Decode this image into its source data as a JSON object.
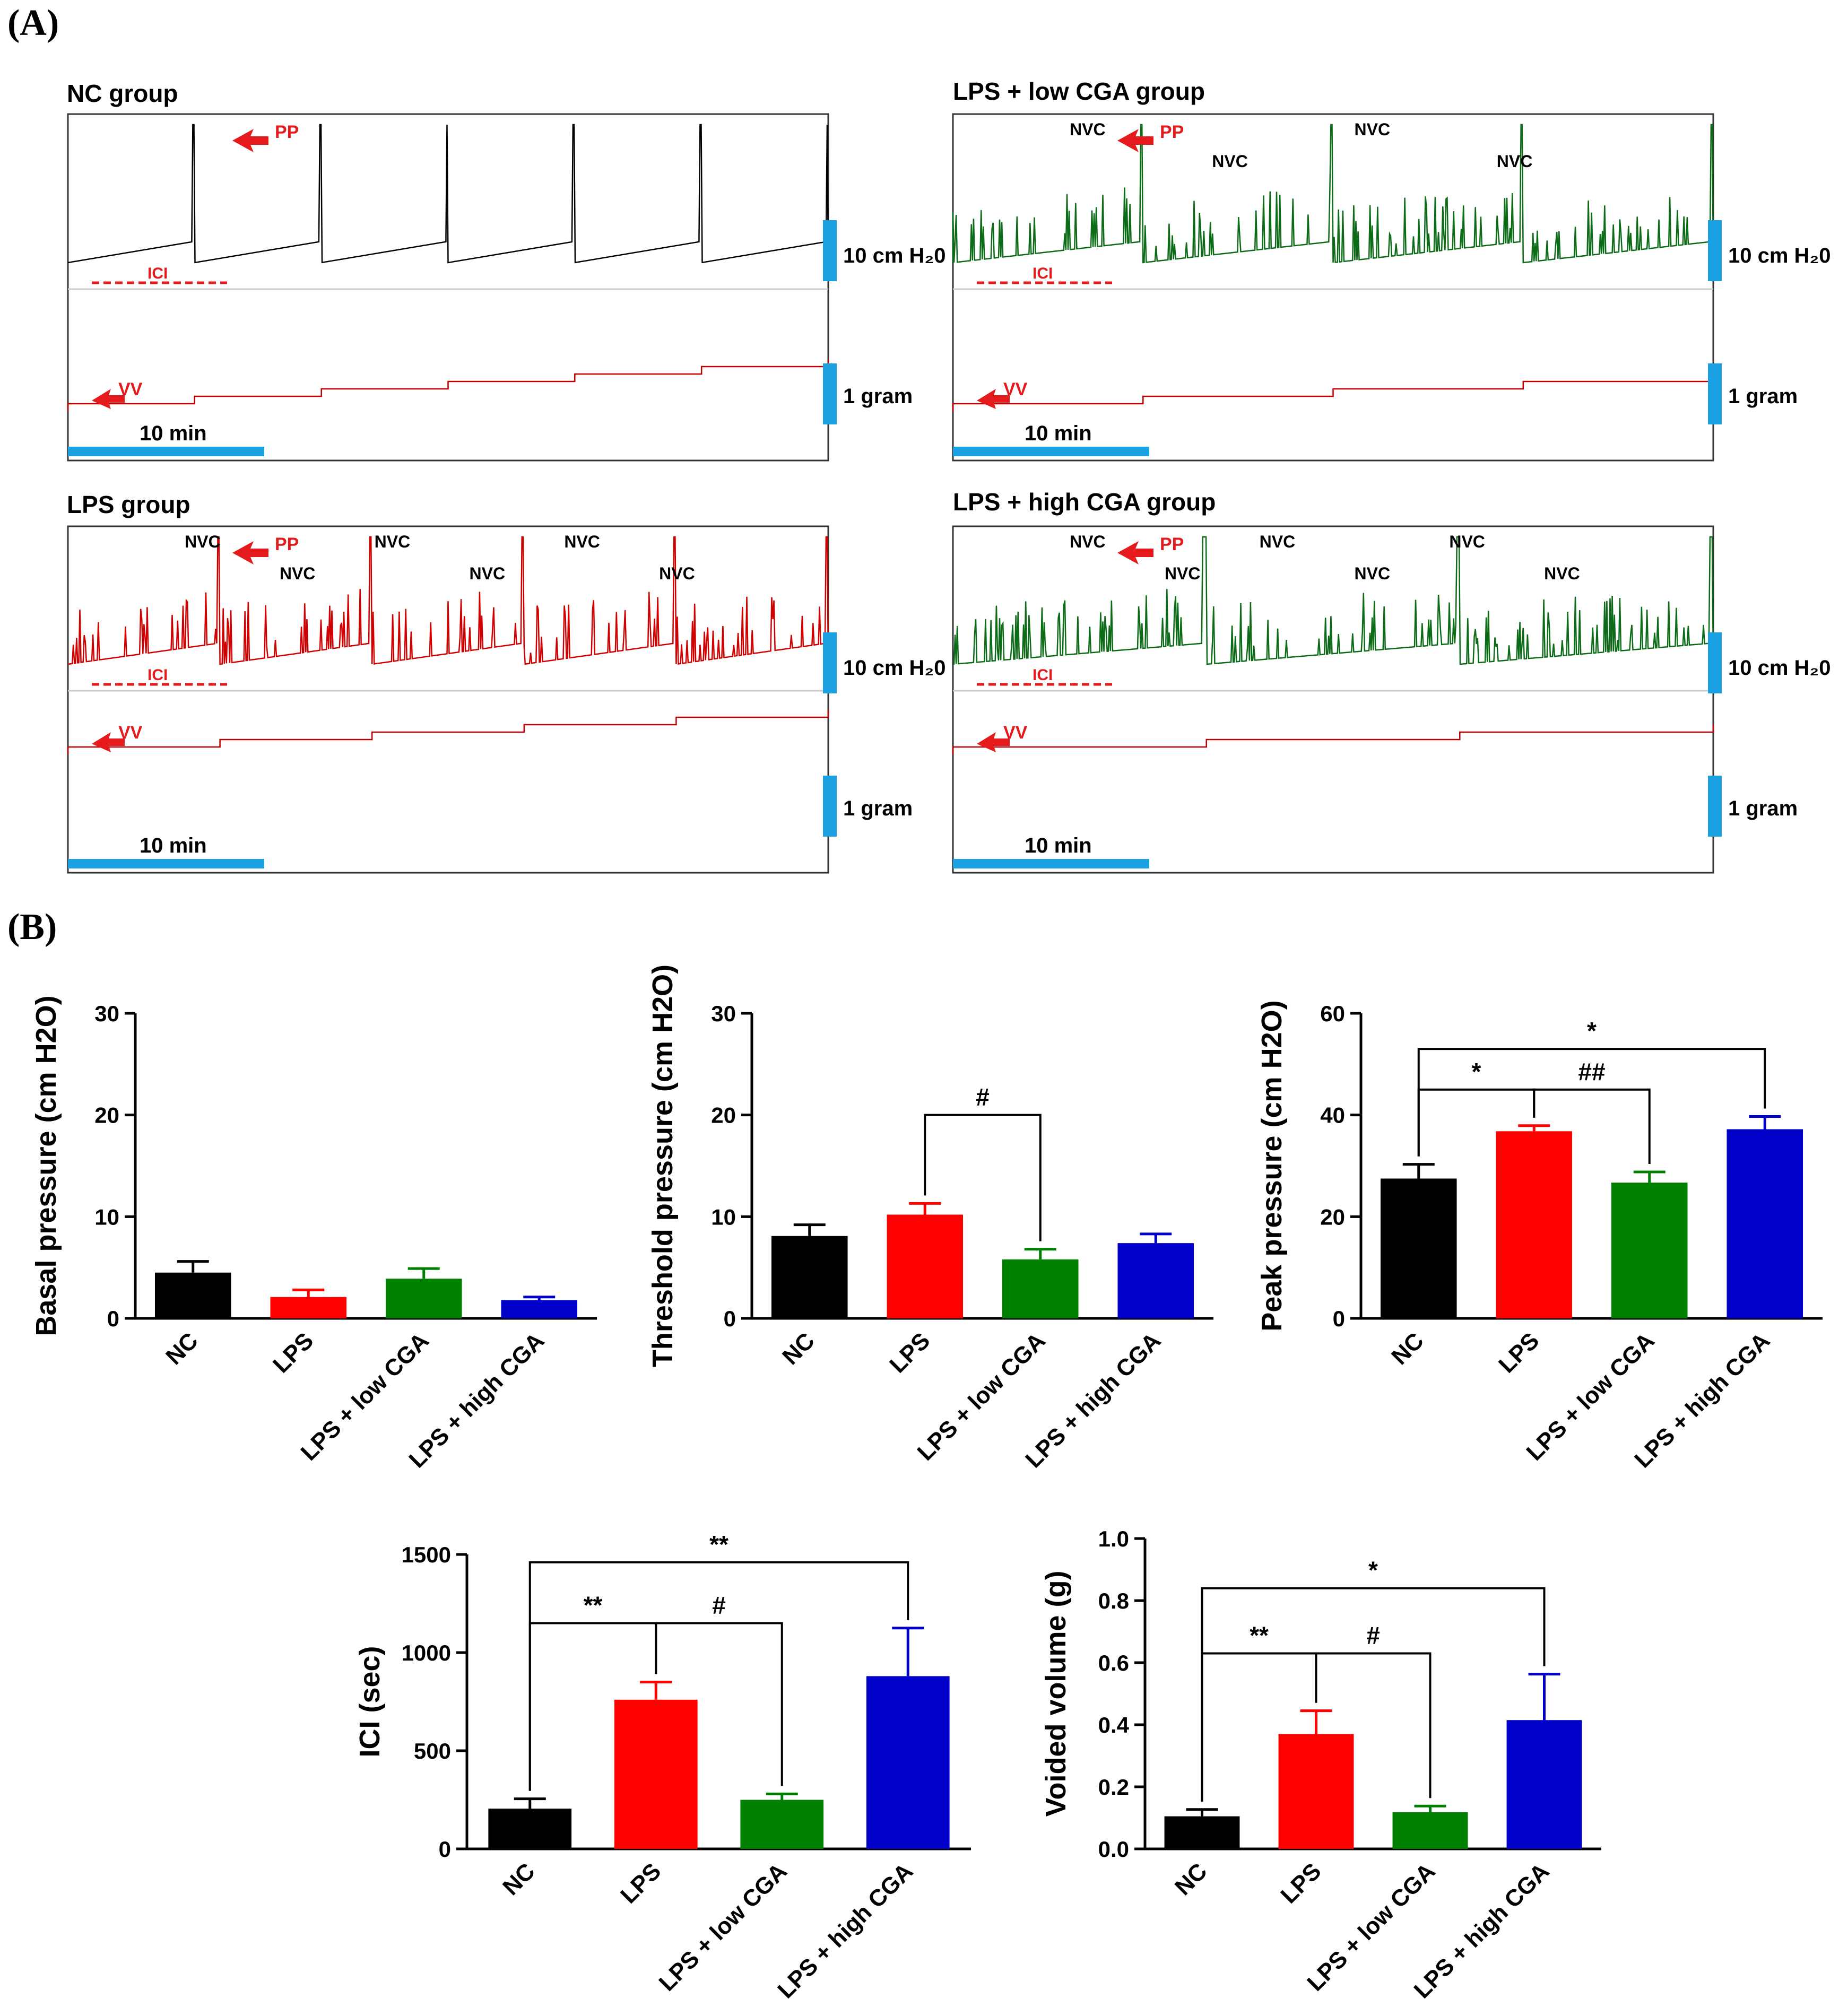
{
  "panels": {
    "a": {
      "label": "(A)"
    },
    "b": {
      "label": "(B)"
    }
  },
  "colors": {
    "nc": "#000000",
    "lps": "#ff0000",
    "low": "#008000",
    "high": "#0000c8",
    "annot": "#e41a1c",
    "scale": "#1ba1e2"
  },
  "traces": {
    "scale_pressure": "10 cm H₂0",
    "scale_weight": "1 gram",
    "scale_time": "10 min",
    "items": [
      {
        "title": "NC group",
        "pp": "PP",
        "ici": "ICI",
        "vv": "VV",
        "nvc": []
      },
      {
        "title": "LPS + low CGA group",
        "pp": "PP",
        "ici": "ICI",
        "vv": "VV",
        "nvc": [
          "NVC",
          "NVC",
          "NVC",
          "NVC"
        ]
      },
      {
        "title": "LPS group",
        "pp": "PP",
        "ici": "ICI",
        "vv": "VV",
        "nvc": [
          "NVC",
          "NVC",
          "NVC",
          "NVC",
          "NVC",
          "NVC"
        ]
      },
      {
        "title": "LPS + high CGA group",
        "pp": "PP",
        "ici": "ICI",
        "vv": "VV",
        "nvc": [
          "NVC",
          "NVC",
          "NVC",
          "NVC",
          "NVC",
          "NVC"
        ]
      }
    ]
  },
  "chart_data": [
    {
      "type": "bar",
      "ylabel": "Basal pressure (cm H2O)",
      "ylim": [
        0,
        30
      ],
      "yticks": [
        0,
        10,
        20,
        30
      ],
      "categories": [
        "NC",
        "LPS",
        "LPS + low CGA",
        "LPS + high CGA"
      ],
      "values": [
        4.5,
        2.1,
        3.9,
        1.8
      ],
      "errors": [
        1.1,
        0.7,
        1.0,
        0.3
      ],
      "sig": []
    },
    {
      "type": "bar",
      "ylabel": "Threshold pressure (cm H2O)",
      "ylim": [
        0,
        30
      ],
      "yticks": [
        0,
        10,
        20,
        30
      ],
      "categories": [
        "NC",
        "LPS",
        "LPS + low CGA",
        "LPS + high CGA"
      ],
      "values": [
        8.1,
        10.2,
        5.8,
        7.4
      ],
      "errors": [
        1.1,
        1.1,
        1.0,
        0.9
      ],
      "sig": [
        {
          "from": 1,
          "to": 2,
          "level": 20,
          "label": "#"
        }
      ]
    },
    {
      "type": "bar",
      "ylabel": "Peak pressure (cm H2O)",
      "ylim": [
        0,
        60
      ],
      "yticks": [
        0,
        20,
        40,
        60
      ],
      "categories": [
        "NC",
        "LPS",
        "LPS + low CGA",
        "LPS + high CGA"
      ],
      "values": [
        27.5,
        36.8,
        26.7,
        37.2
      ],
      "errors": [
        2.8,
        1.1,
        2.1,
        2.5
      ],
      "sig": [
        {
          "from": 0,
          "to": 1,
          "level": 45,
          "label": "*"
        },
        {
          "from": 1,
          "to": 2,
          "level": 45,
          "label": "##"
        },
        {
          "from": 0,
          "to": 3,
          "level": 53,
          "label": "*"
        }
      ]
    },
    {
      "type": "bar",
      "ylabel": "ICI (sec)",
      "ylim": [
        0,
        1500
      ],
      "yticks": [
        0,
        500,
        1000,
        1500
      ],
      "categories": [
        "NC",
        "LPS",
        "LPS + low CGA",
        "LPS + high CGA"
      ],
      "values": [
        205,
        760,
        250,
        880
      ],
      "errors": [
        50,
        90,
        30,
        245
      ],
      "sig": [
        {
          "from": 0,
          "to": 1,
          "level": 1150,
          "label": "**"
        },
        {
          "from": 1,
          "to": 2,
          "level": 1150,
          "label": "#"
        },
        {
          "from": 0,
          "to": 3,
          "level": 1460,
          "label": "**"
        }
      ]
    },
    {
      "type": "bar",
      "ylabel": "Voided volume (g)",
      "ylim": [
        0,
        1.0
      ],
      "yticks": [
        0.0,
        0.2,
        0.4,
        0.6,
        0.8,
        1.0
      ],
      "categories": [
        "NC",
        "LPS",
        "LPS + low CGA",
        "LPS + high CGA"
      ],
      "values": [
        0.105,
        0.37,
        0.118,
        0.415
      ],
      "errors": [
        0.022,
        0.075,
        0.02,
        0.148
      ],
      "sig": [
        {
          "from": 0,
          "to": 1,
          "level": 0.63,
          "label": "**"
        },
        {
          "from": 1,
          "to": 2,
          "level": 0.63,
          "label": "#"
        },
        {
          "from": 0,
          "to": 3,
          "level": 0.84,
          "label": "*"
        }
      ]
    }
  ]
}
